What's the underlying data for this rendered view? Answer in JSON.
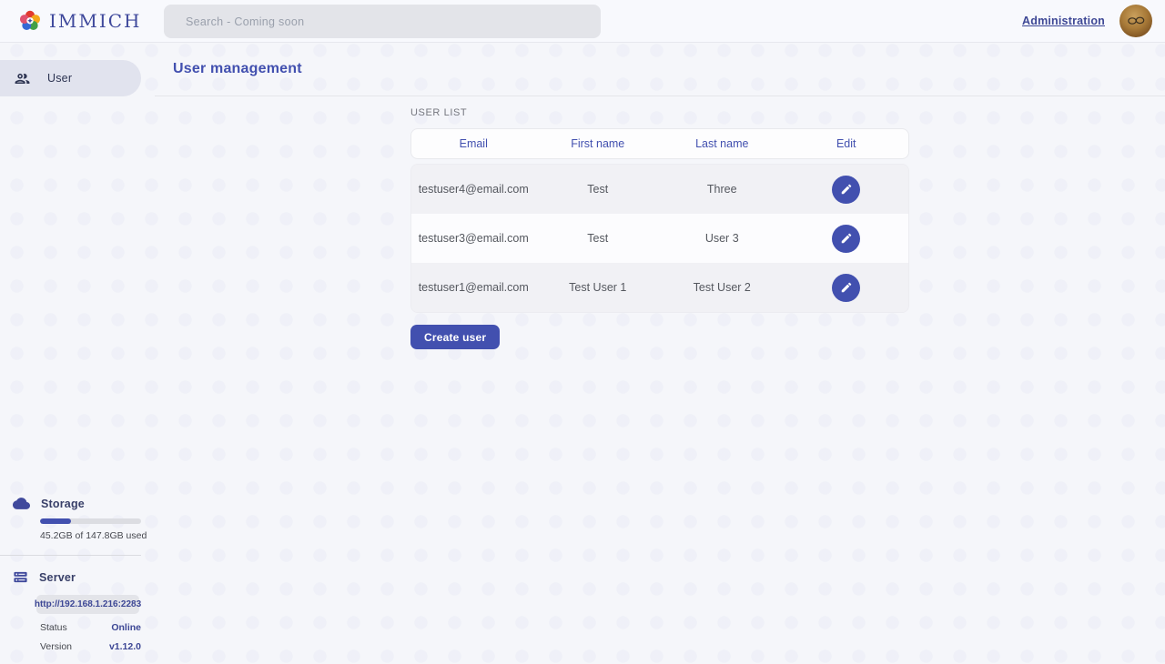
{
  "brand": {
    "name": "IMMICH"
  },
  "nav": {
    "search_placeholder": "Search - Coming soon",
    "admin_link": "Administration"
  },
  "sidebar": {
    "items": [
      {
        "label": "User"
      }
    ]
  },
  "page": {
    "title": "User management"
  },
  "user_list": {
    "section_label": "USER LIST",
    "columns": [
      "Email",
      "First name",
      "Last name",
      "Edit"
    ],
    "rows": [
      {
        "email": "testuser4@email.com",
        "first_name": "Test",
        "last_name": "Three"
      },
      {
        "email": "testuser3@email.com",
        "first_name": "Test",
        "last_name": "User 3"
      },
      {
        "email": "testuser1@email.com",
        "first_name": "Test User 1",
        "last_name": "Test User 2"
      }
    ],
    "create_button": "Create user"
  },
  "storage": {
    "title": "Storage",
    "usage_text": "45.2GB of 147.8GB used",
    "percent_used": 30.6
  },
  "server": {
    "title": "Server",
    "url": "http://192.168.1.216:2283",
    "status_label": "Status",
    "status_value": "Online",
    "version_label": "Version",
    "version_value": "v1.12.0"
  },
  "colors": {
    "primary": "#4250af",
    "page_bg": "#f5f6fa",
    "row_alt_bg": "#f1f1f5",
    "status_online": "#3d4795"
  }
}
